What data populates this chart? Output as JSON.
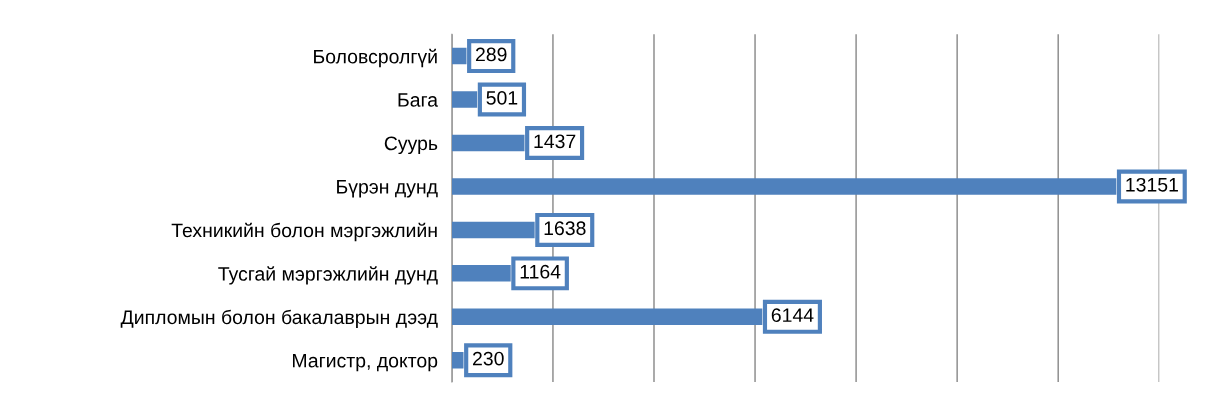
{
  "chart_data": {
    "type": "bar",
    "orientation": "horizontal",
    "categories": [
      "Боловсролгүй",
      "Бага",
      "Суурь",
      "Бүрэн дунд",
      "Техникийн болон мэргэжлийн",
      "Тусгай мэргэжлийн дунд",
      "Дипломын болон бакалаврын дээд",
      "Магистр, доктор"
    ],
    "values": [
      289,
      501,
      1437,
      13151,
      1638,
      1164,
      6144,
      230
    ],
    "color": "#4f81bd",
    "xlim": [
      0,
      14000
    ],
    "xticks": [
      {
        "value": 0,
        "label": null
      },
      {
        "value": 2000,
        "label": null
      },
      {
        "value": 4000,
        "label": null
      },
      {
        "value": 6000,
        "label": null
      },
      {
        "value": 8000,
        "label": null
      },
      {
        "value": 10000,
        "label": null
      },
      {
        "value": 12000,
        "label": null
      },
      {
        "value": 14000,
        "label": null
      }
    ],
    "grid": "x",
    "tick_labels": "y",
    "data_labels": true
  }
}
